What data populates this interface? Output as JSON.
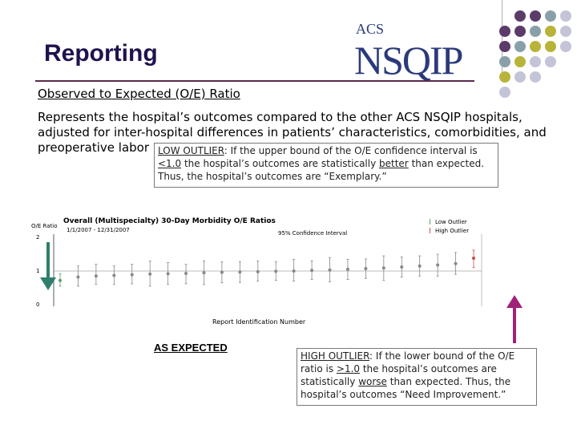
{
  "header": {
    "title": "Reporting"
  },
  "logo": {
    "top_text": "ACS",
    "brand": "NSQIP"
  },
  "section": {
    "subtitle": "Observed to Expected (O/E) Ratio",
    "description": "Represents the hospital’s outcomes compared to the other ACS NSQIP hospitals, adjusted for inter-hospital differences in patients’ characteristics, comorbidities, and preoperative labor"
  },
  "low_outlier": {
    "term": "LOW OUTLIER",
    "line1_rest": ": If the upper bound of the O/E confidence interval is",
    "threshold": "<1.0",
    "line2_a": " the hospital’s outcomes are statistically ",
    "emph": "better",
    "line2_b": " than expected.",
    "line3": "Thus, the hospital’s outcomes are “Exemplary.”"
  },
  "high_outlier": {
    "term": "HIGH OUTLIER",
    "line1_rest": ": If the lower bound of the O/E",
    "line2_a": "ratio  is ",
    "threshold": ">1.0",
    "line2_b": " the hospital’s outcomes are",
    "line3_a": "statistically ",
    "emph": "worse",
    "line3_b": " than expected. Thus, the",
    "line4": "hospital’s outcomes “Need Improvement.”"
  },
  "as_expected_label": "AS EXPECTED",
  "chart_data": {
    "type": "scatter",
    "title": "Overall (Multispecialty) 30-Day Morbidity O/E Ratios",
    "date_range": "1/1/2007 - 12/31/2007",
    "ylabel": "O/E Ratio",
    "xlabel": "Report Identification Number",
    "yticks": [
      "0",
      "1",
      "2"
    ],
    "ylim": [
      0,
      2
    ],
    "legend": [
      "Low Outlier",
      "High Outlier"
    ],
    "ci_label": "95% Confidence Interval",
    "series": [
      {
        "name": "O/E Ratio",
        "values": [
          0.72,
          0.82,
          0.85,
          0.87,
          0.89,
          0.91,
          0.92,
          0.93,
          0.95,
          0.96,
          0.97,
          0.98,
          0.99,
          1.0,
          1.02,
          1.03,
          1.05,
          1.07,
          1.09,
          1.12,
          1.15,
          1.18,
          1.22,
          1.38
        ],
        "ci_low": [
          0.55,
          0.55,
          0.6,
          0.6,
          0.62,
          0.55,
          0.6,
          0.62,
          0.6,
          0.65,
          0.66,
          0.7,
          0.72,
          0.7,
          0.75,
          0.68,
          0.75,
          0.78,
          0.72,
          0.82,
          0.85,
          0.85,
          0.9,
          1.1
        ],
        "ci_high": [
          0.92,
          1.15,
          1.2,
          1.15,
          1.2,
          1.3,
          1.25,
          1.2,
          1.3,
          1.27,
          1.28,
          1.3,
          1.28,
          1.35,
          1.3,
          1.4,
          1.35,
          1.36,
          1.45,
          1.42,
          1.45,
          1.5,
          1.55,
          1.62
        ]
      }
    ],
    "outlier_status": [
      "low",
      "none",
      "none",
      "none",
      "none",
      "none",
      "none",
      "none",
      "none",
      "none",
      "none",
      "none",
      "none",
      "none",
      "none",
      "none",
      "none",
      "none",
      "none",
      "none",
      "none",
      "none",
      "none",
      "high"
    ],
    "colors": {
      "point": "#888888",
      "low": "#5aa06a",
      "high": "#c0504d",
      "ref": "#7a7a7a"
    }
  },
  "colors": {
    "title": "#21124e",
    "rule": "#5b2a4e",
    "arrow_down": "#2e7f6b",
    "arrow_up": "#a0207a"
  }
}
